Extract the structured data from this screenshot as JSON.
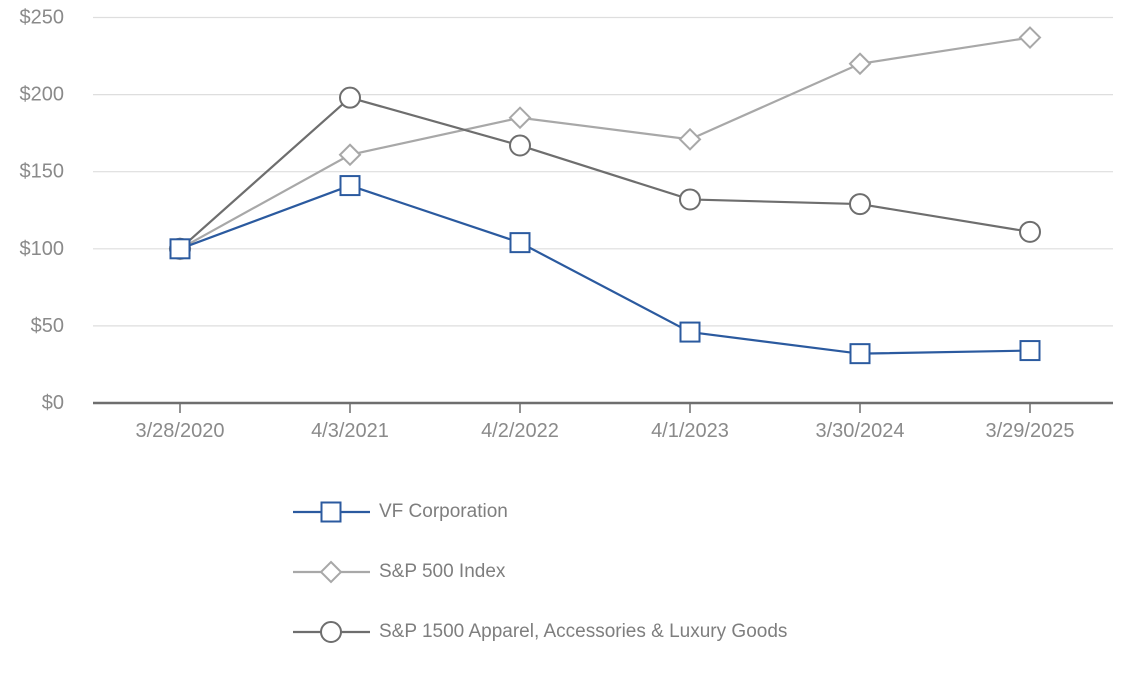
{
  "chart_data": {
    "type": "line",
    "title": "",
    "xlabel": "",
    "ylabel": "",
    "categories": [
      "3/28/2020",
      "4/3/2021",
      "4/2/2022",
      "4/1/2023",
      "3/30/2024",
      "3/29/2025"
    ],
    "series": [
      {
        "name": "VF Corporation",
        "marker": "square",
        "color": "#2B5A9F",
        "values": [
          100,
          141,
          104,
          46,
          32,
          34
        ]
      },
      {
        "name": "S&P 500 Index",
        "marker": "diamond",
        "color": "#A8A8A8",
        "values": [
          100,
          161,
          185,
          171,
          220,
          237
        ]
      },
      {
        "name": "S&P 1500 Apparel, Accessories & Luxury Goods",
        "marker": "circle",
        "color": "#6E6E6E",
        "values": [
          100,
          198,
          167,
          132,
          129,
          111
        ]
      }
    ],
    "y_ticks": [
      {
        "label": "$0",
        "value": 0
      },
      {
        "label": "$50",
        "value": 50
      },
      {
        "label": "$100",
        "value": 100
      },
      {
        "label": "$150",
        "value": 150
      },
      {
        "label": "$200",
        "value": 200
      },
      {
        "label": "$250",
        "value": 250
      }
    ],
    "ylim": [
      0,
      250
    ],
    "grid": true,
    "legend_position": "bottom-left"
  },
  "colors": {
    "background": "#FFFFFF",
    "gridline": "#DEDEDE",
    "axis_line": "#6E6E6E",
    "tick_mark": "#6E6E6E",
    "tick_label": "#8A8A8A",
    "legend_text": "#7E7E7E",
    "marker_fill": "#FFFFFF"
  }
}
